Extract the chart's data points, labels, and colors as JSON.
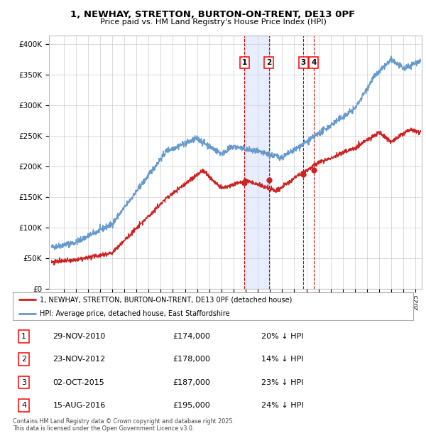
{
  "title": "1, NEWHAY, STRETTON, BURTON-ON-TRENT, DE13 0PF",
  "subtitle": "Price paid vs. HM Land Registry's House Price Index (HPI)",
  "ylabel_ticks": [
    "£0",
    "£50K",
    "£100K",
    "£150K",
    "£200K",
    "£250K",
    "£300K",
    "£350K",
    "£400K"
  ],
  "ytick_values": [
    0,
    50000,
    100000,
    150000,
    200000,
    250000,
    300000,
    350000,
    400000
  ],
  "ylim": [
    0,
    415000
  ],
  "xlim_start": 1995.0,
  "xlim_end": 2025.5,
  "hpi_color": "#6699cc",
  "price_color": "#cc2222",
  "vline_color": "#cc0000",
  "shade_color": "#dde8ff",
  "legend_label_price": "1, NEWHAY, STRETTON, BURTON-ON-TRENT, DE13 0PF (detached house)",
  "legend_label_hpi": "HPI: Average price, detached house, East Staffordshire",
  "transactions": [
    {
      "id": 1,
      "date": 2010.9,
      "price": 174000,
      "label": "29-NOV-2010",
      "price_str": "£174,000",
      "pct": "20%",
      "dir": "↓"
    },
    {
      "id": 2,
      "date": 2012.9,
      "price": 178000,
      "label": "23-NOV-2012",
      "price_str": "£178,000",
      "pct": "14%",
      "dir": "↓"
    },
    {
      "id": 3,
      "date": 2015.75,
      "price": 187000,
      "label": "02-OCT-2015",
      "price_str": "£187,000",
      "pct": "23%",
      "dir": "↓"
    },
    {
      "id": 4,
      "date": 2016.6,
      "price": 195000,
      "label": "15-AUG-2016",
      "price_str": "£195,000",
      "pct": "24%",
      "dir": "↓"
    }
  ],
  "footnote": "Contains HM Land Registry data © Crown copyright and database right 2025.\nThis data is licensed under the Open Government Licence v3.0.",
  "background_color": "#ffffff",
  "grid_color": "#cccccc",
  "xtick_start": 1996,
  "xtick_end": 2025
}
